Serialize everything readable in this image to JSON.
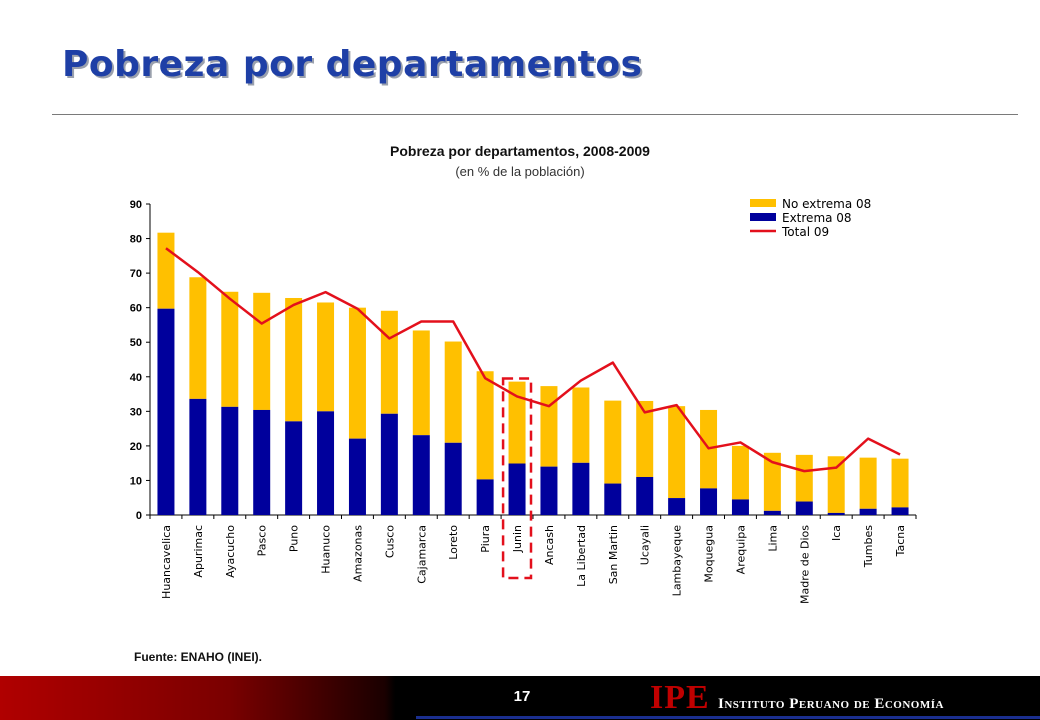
{
  "slide": {
    "title": "Pobreza por departamentos",
    "source": "Fuente: ENAHO (INEI).",
    "page_number": "17",
    "logo_mark": "IPE",
    "logo_text": "Instituto Peruano de Economía"
  },
  "colors": {
    "no_extrema": "#ffc000",
    "extrema": "#00009c",
    "total": "#e3101c",
    "title": "#1e3fa6",
    "highlight": "#e3101c"
  },
  "chart_data": {
    "type": "bar",
    "stacked": true,
    "title": "Pobreza por departamentos, 2008-2009",
    "subtitle": "(en % de la población)",
    "categories": [
      "Huancavelica",
      "Apurimac",
      "Ayacucho",
      "Pasco",
      "Puno",
      "Huanuco",
      "Amazonas",
      "Cusco",
      "Cajamarca",
      "Loreto",
      "Piura",
      "Junin",
      "Ancash",
      "La Libertad",
      "San Martin",
      "Ucayali",
      "Lambayeque",
      "Moquegua",
      "Arequipa",
      "Lima",
      "Madre de Dios",
      "Ica",
      "Tumbes",
      "Tacna"
    ],
    "series": [
      {
        "name": "Extrema 08",
        "kind": "bar",
        "values": [
          59.7,
          33.6,
          31.3,
          30.4,
          27.1,
          30.0,
          22.1,
          29.3,
          23.1,
          20.9,
          10.3,
          14.9,
          14.0,
          15.1,
          9.1,
          11.0,
          4.9,
          7.7,
          4.5,
          1.2,
          3.9,
          0.6,
          1.8,
          2.2
        ]
      },
      {
        "name": "No extrema 08",
        "kind": "bar",
        "values": [
          22.0,
          35.2,
          33.3,
          33.9,
          35.7,
          31.5,
          37.9,
          29.8,
          30.3,
          29.3,
          31.3,
          23.7,
          23.3,
          21.8,
          24.0,
          22.0,
          26.6,
          22.7,
          15.5,
          16.8,
          13.5,
          16.4,
          14.8,
          14.1
        ]
      },
      {
        "name": "Total 09",
        "kind": "line",
        "values": [
          77.2,
          70.3,
          62.6,
          55.4,
          60.8,
          64.5,
          59.7,
          51.1,
          56.0,
          56.0,
          39.6,
          34.3,
          31.5,
          38.9,
          44.1,
          29.7,
          31.8,
          19.3,
          21.0,
          15.3,
          12.7,
          13.7,
          22.1,
          17.5
        ]
      }
    ],
    "highlight_category": "Junin",
    "ylim": [
      0,
      90
    ],
    "yticks": [
      0,
      10,
      20,
      30,
      40,
      50,
      60,
      70,
      80,
      90
    ],
    "legend_position": "top-right",
    "grid": false
  }
}
